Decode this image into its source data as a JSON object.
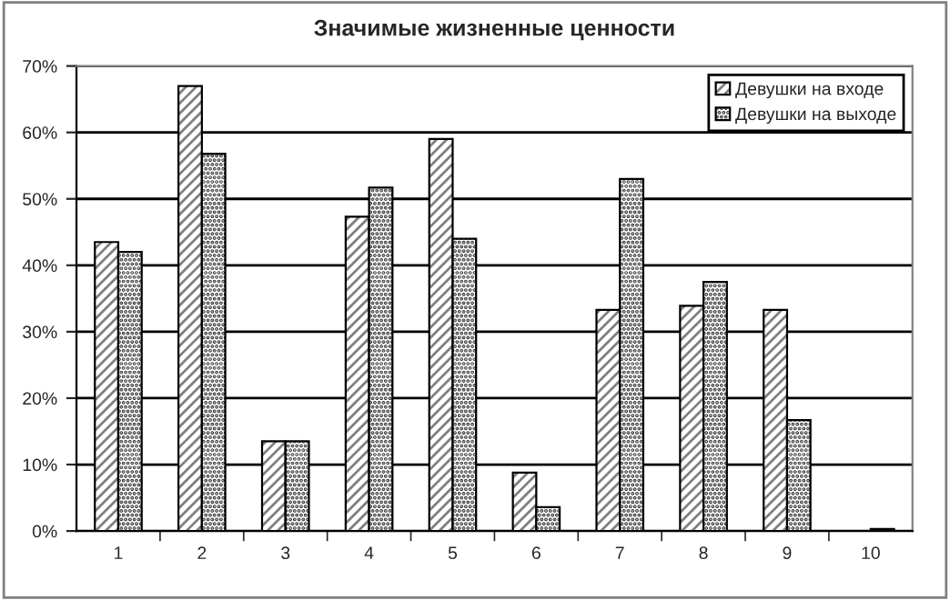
{
  "chart_data": {
    "type": "bar",
    "title": "Значимые жизненные ценности",
    "categories": [
      "1",
      "2",
      "3",
      "4",
      "5",
      "6",
      "7",
      "8",
      "9",
      "10"
    ],
    "series": [
      {
        "name": "Девушки на входе",
        "values": [
          43.5,
          67,
          13.5,
          47.3,
          59,
          8.8,
          33.3,
          33.9,
          33.3,
          0
        ]
      },
      {
        "name": "Девушки на выходе",
        "values": [
          42,
          56.8,
          13.5,
          51.7,
          44,
          3.6,
          53,
          37.5,
          16.7,
          0.3
        ]
      }
    ],
    "ylim": [
      0,
      70
    ],
    "yticks": [
      {
        "value": 0,
        "label": "0%"
      },
      {
        "value": 10,
        "label": "10%"
      },
      {
        "value": 20,
        "label": "20%"
      },
      {
        "value": 30,
        "label": "30%"
      },
      {
        "value": 40,
        "label": "40%"
      },
      {
        "value": 50,
        "label": "50%"
      },
      {
        "value": 60,
        "label": "60%"
      },
      {
        "value": 70,
        "label": "70%"
      }
    ],
    "grid": "y",
    "legend": "top right"
  }
}
